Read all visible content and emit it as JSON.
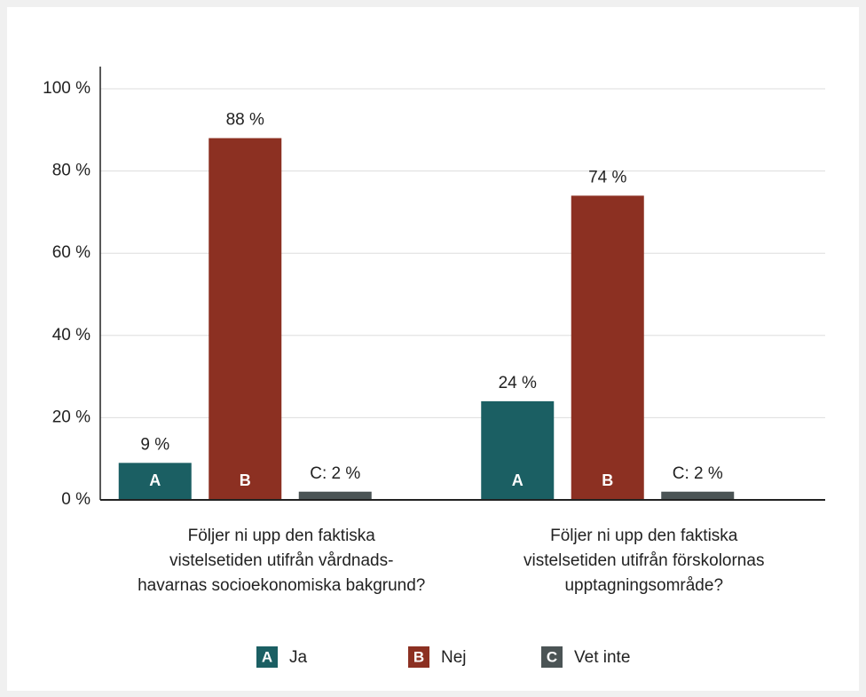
{
  "chart_data": {
    "type": "bar",
    "categories": [
      "Följer ni upp den faktiska\nvistelsetiden utifrån vårdnads-\nhavarnas socioekonomiska bakgrund?",
      "Följer ni upp den faktiska\nvistelsetiden utifrån förskolornas\nupptagningsområde?"
    ],
    "series": [
      {
        "name": "Ja",
        "key": "A",
        "color": "#1b5f63",
        "values": [
          9,
          24
        ],
        "value_labels": [
          "9 %",
          "24 %"
        ]
      },
      {
        "name": "Nej",
        "key": "B",
        "color": "#8c3022",
        "values": [
          88,
          74
        ],
        "value_labels": [
          "88 %",
          "74 %"
        ]
      },
      {
        "name": "Vet inte",
        "key": "C",
        "color": "#4b5455",
        "values": [
          2,
          2
        ],
        "value_labels": [
          "C: 2 %",
          "C: 2 %"
        ]
      }
    ],
    "ylim": [
      0,
      100
    ],
    "yticks": [
      {
        "value": 0,
        "label": "0 %"
      },
      {
        "value": 20,
        "label": "20 %"
      },
      {
        "value": 40,
        "label": "40 %"
      },
      {
        "value": 60,
        "label": "60 %"
      },
      {
        "value": 80,
        "label": "80 %"
      },
      {
        "value": 100,
        "label": "100 %"
      }
    ],
    "grid": true
  }
}
